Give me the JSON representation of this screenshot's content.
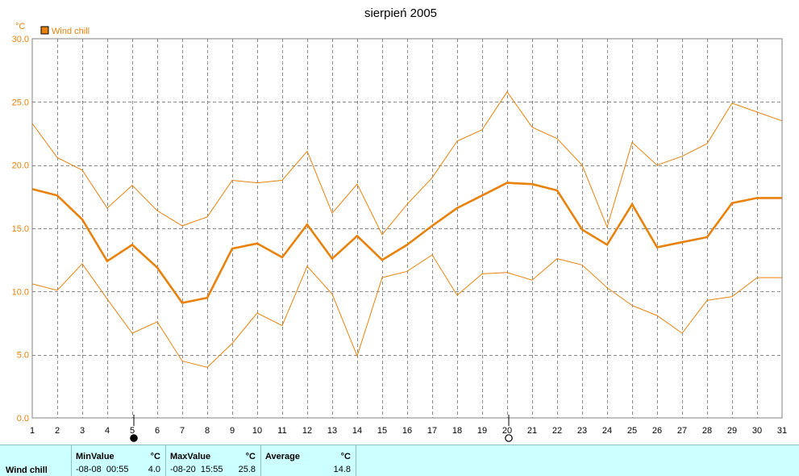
{
  "chart_data": {
    "type": "line",
    "title": "sierpień 2005",
    "y_unit": "°C",
    "xlim": [
      1,
      31
    ],
    "ylim": [
      0.0,
      30.0
    ],
    "x_ticks": [
      1,
      2,
      3,
      4,
      5,
      6,
      7,
      8,
      9,
      10,
      11,
      12,
      13,
      14,
      15,
      16,
      17,
      18,
      19,
      20,
      21,
      22,
      23,
      24,
      25,
      26,
      27,
      28,
      29,
      30,
      31
    ],
    "y_ticks": [
      "0.0",
      "5.0",
      "10.0",
      "15.0",
      "20.0",
      "25.0",
      "30.0"
    ],
    "grid": true,
    "legend": {
      "label": "Wind chill",
      "placement": "top-left"
    },
    "x": [
      1,
      2,
      3,
      4,
      5,
      6,
      7,
      8,
      9,
      10,
      11,
      12,
      13,
      14,
      15,
      16,
      17,
      18,
      19,
      20,
      21,
      22,
      23,
      24,
      25,
      26,
      27,
      28,
      29,
      30,
      31
    ],
    "series": [
      {
        "name": "Wind chill",
        "color": "#e8820c",
        "values": [
          18.1,
          17.6,
          15.7,
          12.4,
          13.7,
          11.9,
          9.1,
          9.5,
          13.4,
          13.8,
          12.7,
          15.3,
          12.6,
          14.4,
          12.5,
          13.7,
          15.2,
          16.6,
          17.6,
          18.6,
          18.5,
          18.0,
          14.9,
          13.7,
          16.9,
          13.5,
          13.9,
          14.3,
          17.0,
          17.4,
          17.4
        ]
      },
      {
        "color": "#e8820c",
        "values": [
          23.3,
          20.6,
          19.6,
          16.6,
          18.4,
          16.4,
          15.2,
          15.9,
          18.8,
          18.6,
          18.8,
          21.1,
          16.2,
          18.5,
          14.5,
          16.9,
          19.0,
          21.9,
          22.8,
          25.8,
          23.0,
          22.1,
          20.0,
          15.1,
          21.8,
          20.0,
          20.7,
          21.7,
          24.9,
          24.2,
          23.5
        ]
      },
      {
        "color": "#e8820c",
        "values": [
          10.6,
          10.1,
          12.2,
          9.4,
          6.7,
          7.6,
          4.5,
          4.0,
          5.9,
          8.3,
          7.3,
          12.0,
          9.8,
          4.9,
          11.1,
          11.6,
          12.9,
          9.7,
          11.4,
          11.5,
          10.9,
          12.6,
          12.1,
          10.3,
          8.9,
          8.1,
          6.7,
          9.3,
          9.6,
          11.1,
          11.1
        ]
      }
    ],
    "moon_phases": [
      {
        "day": 5,
        "phase": "new-moon"
      },
      {
        "day": 20,
        "phase": "full-moon"
      }
    ]
  },
  "stats": {
    "series_label": "Wind chill",
    "min": {
      "header": "MinValue",
      "unit": "°C",
      "time": "-08-08  00:55",
      "value": "4.0"
    },
    "max": {
      "header": "MaxValue",
      "unit": "°C",
      "time": "-08-20  15:55",
      "value": "25.8"
    },
    "avg": {
      "header": "Average",
      "unit": "°C",
      "value": "14.8"
    }
  }
}
